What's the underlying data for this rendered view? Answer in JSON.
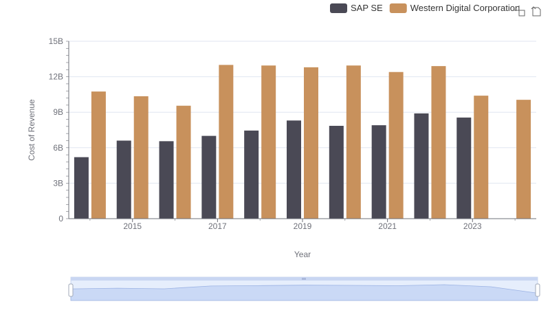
{
  "chart_data": {
    "type": "bar",
    "xlabel": "Year",
    "ylabel": "Cost of Revenue",
    "x": [
      2014,
      2015,
      2016,
      2017,
      2018,
      2019,
      2020,
      2021,
      2022,
      2023,
      2024
    ],
    "x_tick_labels": [
      "2015",
      "2017",
      "2019",
      "2021",
      "2023"
    ],
    "y_tick_labels": [
      "0",
      "3B",
      "6B",
      "9B",
      "12B",
      "15B"
    ],
    "ylim": [
      0,
      15000000000
    ],
    "grid": true,
    "legend_position": "top-right",
    "series": [
      {
        "name": "SAP SE",
        "color": "#4a4955",
        "values": [
          5200000000,
          6600000000,
          6550000000,
          7000000000,
          7450000000,
          8300000000,
          7850000000,
          7900000000,
          8900000000,
          8550000000,
          null
        ]
      },
      {
        "name": "Western Digital Corporation",
        "color": "#c8915c",
        "values": [
          10750000000,
          10350000000,
          9550000000,
          13000000000,
          12950000000,
          12800000000,
          12950000000,
          12400000000,
          12900000000,
          10400000000,
          10050000000
        ]
      }
    ]
  },
  "toolbar": {
    "icons": [
      "zoom-icon",
      "restore-icon"
    ]
  },
  "data_zoom": {
    "range_start": 0,
    "range_end": 100
  }
}
